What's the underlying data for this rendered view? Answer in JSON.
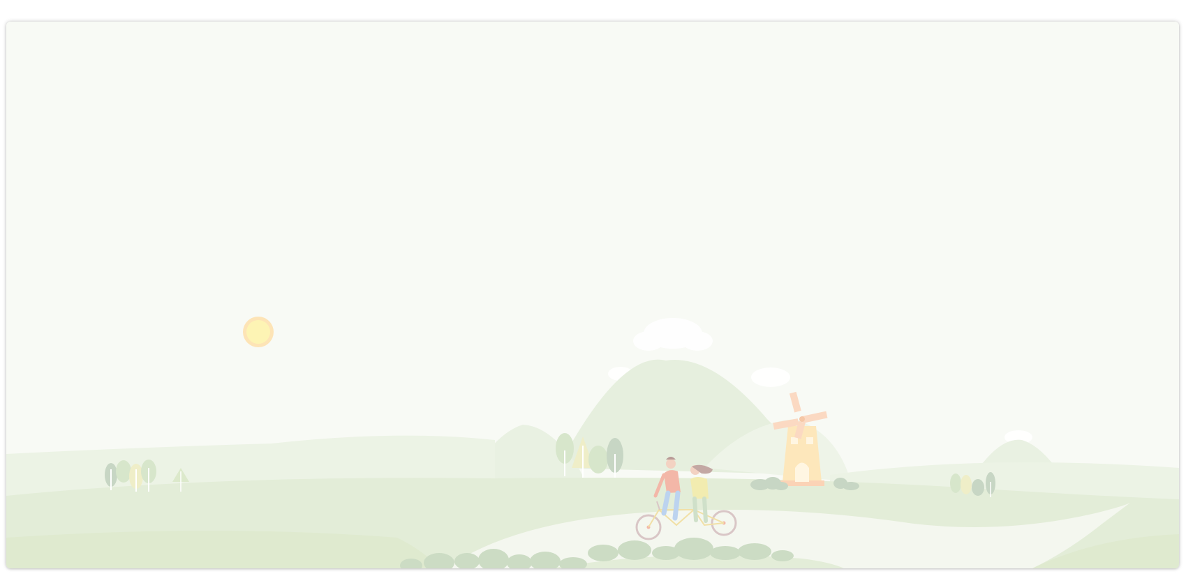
{
  "scene": {
    "palette": {
      "sky": "#f8faf5",
      "hill_far": "#e9f1e2",
      "hill_mid": "#e3edda",
      "ground": "#dfeacf",
      "mountain": "#e4eedb",
      "road": "#f4f7ef",
      "tree_green": "#d7e6cb",
      "tree_grey": "#c7d6c4",
      "tree_yellow": "#efeec8",
      "sun": "#fdf4b4",
      "sun_ring": "#fde4b6",
      "windmill_body": "#fde7bb",
      "windmill_blades": "#fbd9c2",
      "rider_shirt": "#f3b7a8",
      "rider_jeans": "#bcd3ef",
      "bike_wheel": "#d9c6c6"
    },
    "elements": [
      "sun",
      "clouds",
      "mountains",
      "hills",
      "trees",
      "windmill",
      "tandem-bicycle",
      "road",
      "bushes"
    ]
  }
}
